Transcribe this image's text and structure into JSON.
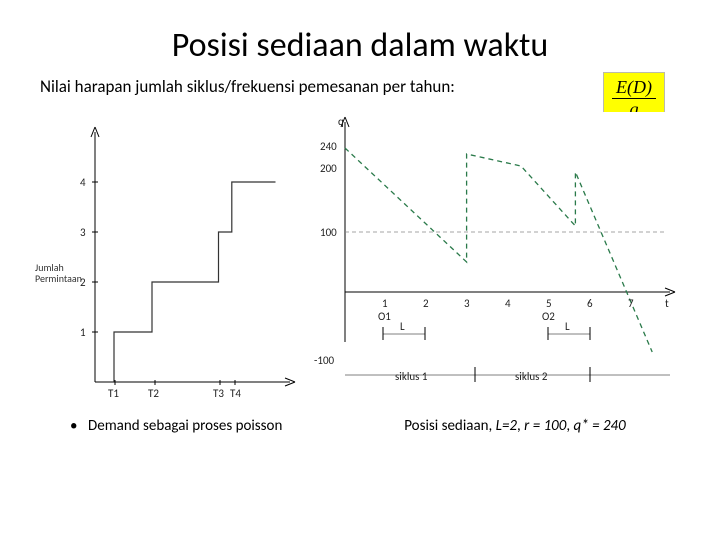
{
  "title": "Posisi sediaan dalam waktu",
  "subtitle": "Nilai harapan jumlah siklus/frekuensi pemesanan per tahun:",
  "formula": {
    "numerator": "E(D)",
    "denominator": "q"
  },
  "left_chart": {
    "type": "step",
    "y_label": "Jumlah\nPermintaan",
    "x_label": "",
    "y_ticks": [
      1,
      2,
      3,
      4
    ],
    "x_ticks": [
      "T1",
      "T2",
      "T3",
      "T4"
    ],
    "line_color": "#333333",
    "points": [
      {
        "x": 0.1,
        "y": 0
      },
      {
        "x": 0.1,
        "y": 1
      },
      {
        "x": 0.3,
        "y": 1
      },
      {
        "x": 0.3,
        "y": 2
      },
      {
        "x": 0.65,
        "y": 2
      },
      {
        "x": 0.65,
        "y": 3
      },
      {
        "x": 0.72,
        "y": 3
      },
      {
        "x": 0.72,
        "y": 4
      },
      {
        "x": 0.95,
        "y": 4
      }
    ],
    "axis_color": "#000000",
    "background": "#ffffff"
  },
  "right_chart": {
    "type": "line",
    "y_label": "q",
    "x_label": "t",
    "y_ticks": [
      -100,
      100,
      200,
      240
    ],
    "x_ticks": [
      1,
      2,
      3,
      4,
      5,
      6,
      7
    ],
    "x_sub_labels": {
      "1": "O1",
      "5": "O2"
    },
    "horizontal_ref": 100,
    "line_color": "#2a7a4a",
    "dash_line": true,
    "bottom_labels": [
      "siklus 1",
      "siklus 2"
    ],
    "L_markers": [
      "L",
      "L"
    ],
    "series": [
      {
        "x": 0.0,
        "y": 240
      },
      {
        "x": 0.08,
        "y": 200
      },
      {
        "x": 0.38,
        "y": 50
      },
      {
        "x": 0.38,
        "y": 230
      },
      {
        "x": 0.55,
        "y": 210
      },
      {
        "x": 0.72,
        "y": 110
      },
      {
        "x": 0.72,
        "y": 200
      },
      {
        "x": 0.96,
        "y": -100
      }
    ],
    "axis_color": "#000000",
    "grid_dash_color": "#888888",
    "background": "#ffffff"
  },
  "bullet": "Demand sebagai proses poisson",
  "caption": {
    "prefix": "Posisi sediaan, ",
    "L": "L=2",
    "r": "r = 100",
    "q": "q* = 240"
  }
}
